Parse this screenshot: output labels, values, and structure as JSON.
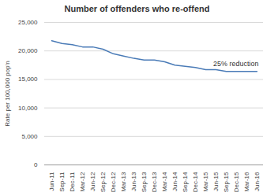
{
  "chart_data": {
    "type": "line",
    "title": "Number of offenders who re-offend",
    "y_label": "Rate per 100,000 pop'n",
    "categories": [
      "Jun-11",
      "Sep-11",
      "Dec-11",
      "Mar-12",
      "Jun-12",
      "Sep-12",
      "Dec-12",
      "Mar-13",
      "Jun-13",
      "Sep-13",
      "Dec-13",
      "Mar-14",
      "Jun-14",
      "Sep-14",
      "Dec-14",
      "Mar-15",
      "Jun-15",
      "Sep-15",
      "Dec-15",
      "Mar-16",
      "Jun-16"
    ],
    "values": [
      21800,
      21300,
      21100,
      20700,
      20700,
      20300,
      19500,
      19100,
      18700,
      18400,
      18400,
      18100,
      17500,
      17300,
      17100,
      16700,
      16700,
      16400,
      16400,
      16400,
      16400
    ],
    "color": "#4a7bb7",
    "ylim": [
      0,
      25000
    ],
    "yticks": [
      0,
      {
        "value": 5000,
        "label": "5,000"
      },
      {
        "value": 10000,
        "label": "10,000"
      },
      {
        "value": 15000,
        "label": "15,000"
      },
      {
        "value": 20000,
        "label": "20,000"
      },
      {
        "value": 25000,
        "label": "25,000"
      }
    ],
    "grid": true,
    "annotations": [
      {
        "text": "25% reduction"
      }
    ]
  }
}
